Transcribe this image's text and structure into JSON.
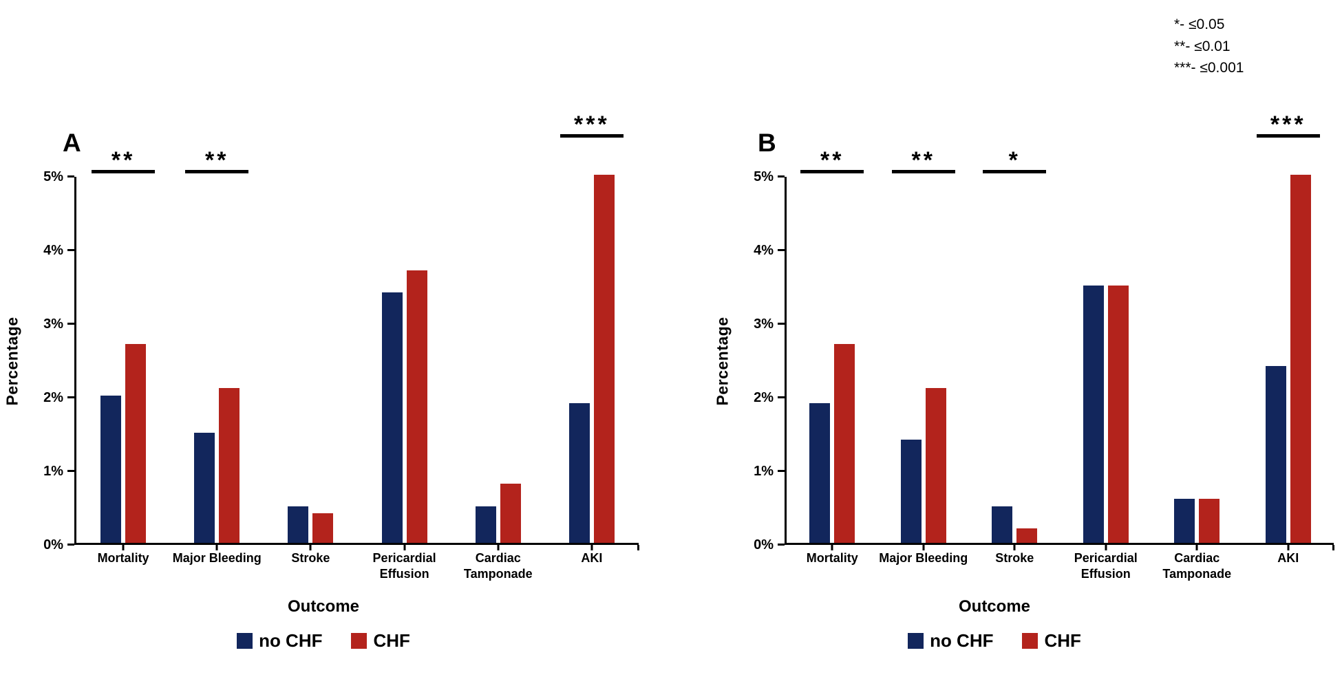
{
  "sig_note": {
    "line1": "*- ≤0.05",
    "line2": "**- ≤0.01",
    "line3": "***- ≤0.001"
  },
  "chart_data": [
    {
      "type": "bar",
      "panel_letter": "A",
      "title": "",
      "xlabel": "Outcome",
      "ylabel": "Percentage",
      "ylim": [
        0,
        5
      ],
      "yticks": [
        "0%",
        "1%",
        "2%",
        "3%",
        "4%",
        "5%"
      ],
      "grid": "off",
      "legend_position": "bottom",
      "categories": [
        "Mortality",
        "Major Bleeding",
        "Stroke",
        "Pericardial Effusion",
        "Cardiac Tamponade",
        "AKI"
      ],
      "series": [
        {
          "name": "no CHF",
          "color": "#12265c",
          "values": [
            2.0,
            1.5,
            0.5,
            3.4,
            0.5,
            1.9
          ]
        },
        {
          "name": "CHF",
          "color": "#b3231c",
          "values": [
            2.7,
            2.1,
            0.4,
            3.7,
            0.8,
            5.0
          ]
        }
      ],
      "significance": [
        {
          "category": "Mortality",
          "label": "**",
          "raised": false
        },
        {
          "category": "Major Bleeding",
          "label": "**",
          "raised": false
        },
        {
          "category": "AKI",
          "label": "***",
          "raised": true
        }
      ]
    },
    {
      "type": "bar",
      "panel_letter": "B",
      "title": "",
      "xlabel": "Outcome",
      "ylabel": "Percentage",
      "ylim": [
        0,
        5
      ],
      "yticks": [
        "0%",
        "1%",
        "2%",
        "3%",
        "4%",
        "5%"
      ],
      "grid": "off",
      "legend_position": "bottom",
      "categories": [
        "Mortality",
        "Major Bleeding",
        "Stroke",
        "Pericardial Effusion",
        "Cardiac Tamponade",
        "AKI"
      ],
      "series": [
        {
          "name": "no CHF",
          "color": "#12265c",
          "values": [
            1.9,
            1.4,
            0.5,
            3.5,
            0.6,
            2.4
          ]
        },
        {
          "name": "CHF",
          "color": "#b3231c",
          "values": [
            2.7,
            2.1,
            0.2,
            3.5,
            0.6,
            5.0
          ]
        }
      ],
      "significance": [
        {
          "category": "Mortality",
          "label": "**",
          "raised": false
        },
        {
          "category": "Major Bleeding",
          "label": "**",
          "raised": false
        },
        {
          "category": "Stroke",
          "label": "*",
          "raised": false
        },
        {
          "category": "AKI",
          "label": "***",
          "raised": true
        }
      ]
    }
  ]
}
